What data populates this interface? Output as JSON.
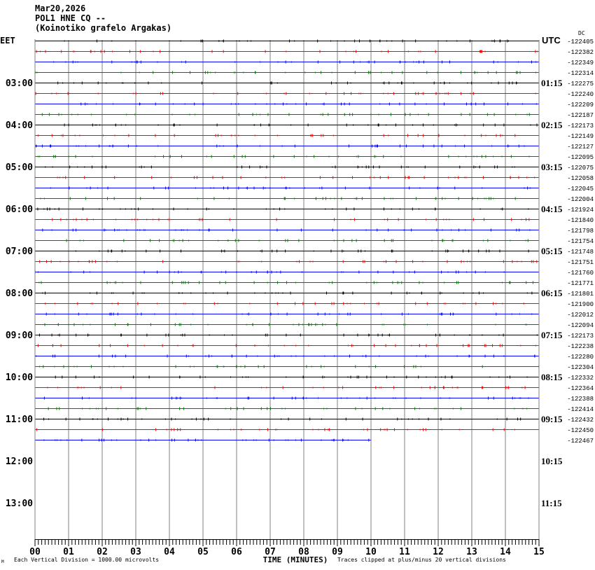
{
  "header": {
    "date": "Mar20,2026",
    "station": "POL1 HNE CQ --",
    "location": "(Koinotiko grafelo Argakas)"
  },
  "chart_data": {
    "type": "line",
    "title": "Mar20,2026 POL1 HNE CQ -- (Koinotiko grafelo Argakas)",
    "left_timezone": "EET",
    "right_timezone": "UTC",
    "dc_label": "DC",
    "left_hour_labels": [
      "03:00",
      "04:00",
      "05:00",
      "06:00",
      "07:00",
      "08:00",
      "09:00",
      "10:00",
      "11:00",
      "12:00",
      "13:00"
    ],
    "right_hour_labels": [
      "01:15",
      "02:15",
      "03:15",
      "04:15",
      "05:15",
      "06:15",
      "07:15",
      "08:15",
      "09:15",
      "10:15",
      "11:15"
    ],
    "trace_colors": [
      "#000000",
      "#ff0000",
      "#0000ff",
      "#008000"
    ],
    "trace_dc_offsets": [
      -122405,
      -122382,
      -122349,
      -122314,
      -122275,
      -122240,
      -122209,
      -122187,
      -122173,
      -122149,
      -122127,
      -122095,
      -122075,
      -122058,
      -122045,
      -122004,
      -121924,
      -121840,
      -121798,
      -121754,
      -121748,
      -121751,
      -121760,
      -121771,
      -121801,
      -121900,
      -122012,
      -122094,
      -122173,
      -122238,
      -122280,
      -122304,
      -122332,
      -122364,
      -122388,
      -122414,
      -122432,
      -122450,
      -122467
    ],
    "last_trace_end_minute": 10,
    "x_ticks": [
      "00",
      "01",
      "02",
      "03",
      "04",
      "05",
      "06",
      "07",
      "08",
      "09",
      "10",
      "11",
      "12",
      "13",
      "14",
      "15"
    ],
    "xlabel": "TIME (MINUTES)",
    "xlim": [
      0,
      15
    ],
    "scale_note": "Each Vertical Division = 1000.00 microvolts",
    "clip_note": "Traces clipped at plus/minus 20 vertical divisions",
    "corner_mark": "M"
  }
}
